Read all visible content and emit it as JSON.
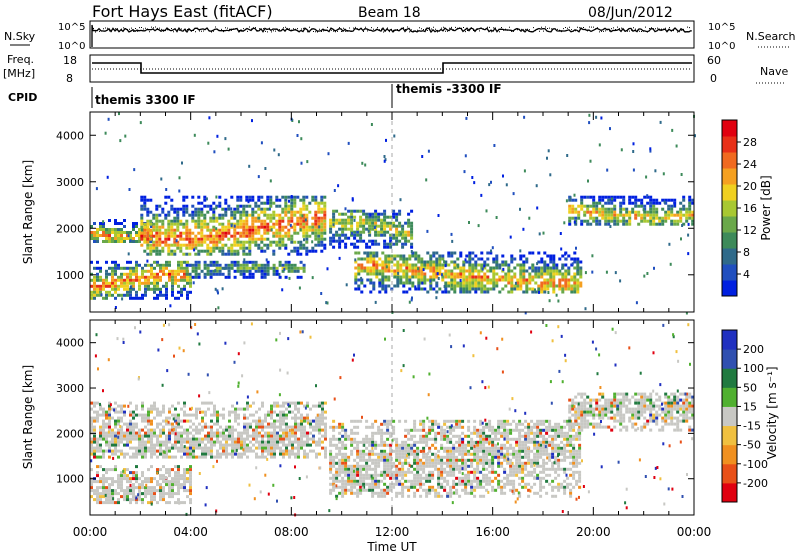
{
  "header": {
    "title": "Fort Hays East (fitACF)",
    "beam": "Beam 18",
    "date": "08/Jun/2012"
  },
  "params_panels": {
    "nsky_label": "N.Sky",
    "nsearch_label": "N.Search",
    "noise_ticks": [
      "10^5",
      "10^0"
    ],
    "freq_label": "Freq.",
    "freq_unit": "[MHz]",
    "freq_ticks": [
      "18",
      "8"
    ],
    "nave_label": "Nave",
    "nave_ticks": [
      "60",
      "0"
    ],
    "cpid_label": "CPID",
    "cpid_segments": [
      {
        "start_hour": 0,
        "label": "themis 3300 IF"
      },
      {
        "start_hour": 12,
        "label": "themis -3300 IF"
      }
    ]
  },
  "chart_data": [
    {
      "type": "heatmap",
      "name": "power-panel",
      "ylabel": "Slant Range [km]",
      "xlabel": "",
      "yticks": [
        1000,
        2000,
        3000,
        4000
      ],
      "ylim": [
        200,
        4500
      ],
      "xlim_hours": [
        0,
        24
      ],
      "colorbar": {
        "label": "Power [dB]",
        "ticks": [
          "4",
          "8",
          "12",
          "16",
          "20",
          "24",
          "28"
        ],
        "colors": [
          "#0020e0",
          "#204fbf",
          "#2f6a8a",
          "#3d8a5a",
          "#6aa84a",
          "#a8c832",
          "#f0d020",
          "#f5a020",
          "#f06a20",
          "#e83018",
          "#e00010"
        ]
      },
      "bands": [
        {
          "t0": 0.0,
          "t1": 2.5,
          "r0": 1700,
          "r1": 2200,
          "level": 0.7
        },
        {
          "t0": 2.0,
          "t1": 9.3,
          "r0": 1450,
          "r1": 2700,
          "level": 0.8
        },
        {
          "t0": 0.0,
          "t1": 4.0,
          "r0": 500,
          "r1": 1300,
          "level": 0.75
        },
        {
          "t0": 3.8,
          "t1": 8.5,
          "r0": 950,
          "r1": 1300,
          "level": 0.4
        },
        {
          "t0": 9.5,
          "t1": 12.8,
          "r0": 1600,
          "r1": 2400,
          "level": 0.55
        },
        {
          "t0": 10.5,
          "t1": 19.5,
          "r0": 600,
          "r1": 1500,
          "level": 0.7
        },
        {
          "t0": 19.0,
          "t1": 24.0,
          "r0": 2100,
          "r1": 2700,
          "level": 0.65
        }
      ]
    },
    {
      "type": "heatmap",
      "name": "velocity-panel",
      "ylabel": "Slant Range [km]",
      "xlabel": "Time UT",
      "xticks": [
        "00:00",
        "04:00",
        "08:00",
        "12:00",
        "16:00",
        "20:00",
        "00:00"
      ],
      "yticks": [
        1000,
        2000,
        3000,
        4000
      ],
      "ylim": [
        200,
        4500
      ],
      "xlim_hours": [
        0,
        24
      ],
      "colorbar": {
        "label": "Velocity [m s⁻¹]",
        "ticks": [
          "200",
          "100",
          "50",
          "15",
          "-15",
          "-50",
          "-100",
          "-200"
        ],
        "colors": [
          "#2030c0",
          "#3050b0",
          "#207a40",
          "#50b030",
          "#c8c8c4",
          "#f0c040",
          "#f09020",
          "#e85018",
          "#e00010"
        ]
      },
      "bands": [
        {
          "t0": 0.0,
          "t1": 9.3,
          "r0": 1450,
          "r1": 2700,
          "level": 0.5
        },
        {
          "t0": 0.0,
          "t1": 4.0,
          "r0": 500,
          "r1": 1300,
          "level": 0.5
        },
        {
          "t0": 9.5,
          "t1": 19.5,
          "r0": 600,
          "r1": 2300,
          "level": 0.5
        },
        {
          "t0": 19.0,
          "t1": 24.0,
          "r0": 2100,
          "r1": 2900,
          "level": 0.5
        }
      ]
    }
  ]
}
